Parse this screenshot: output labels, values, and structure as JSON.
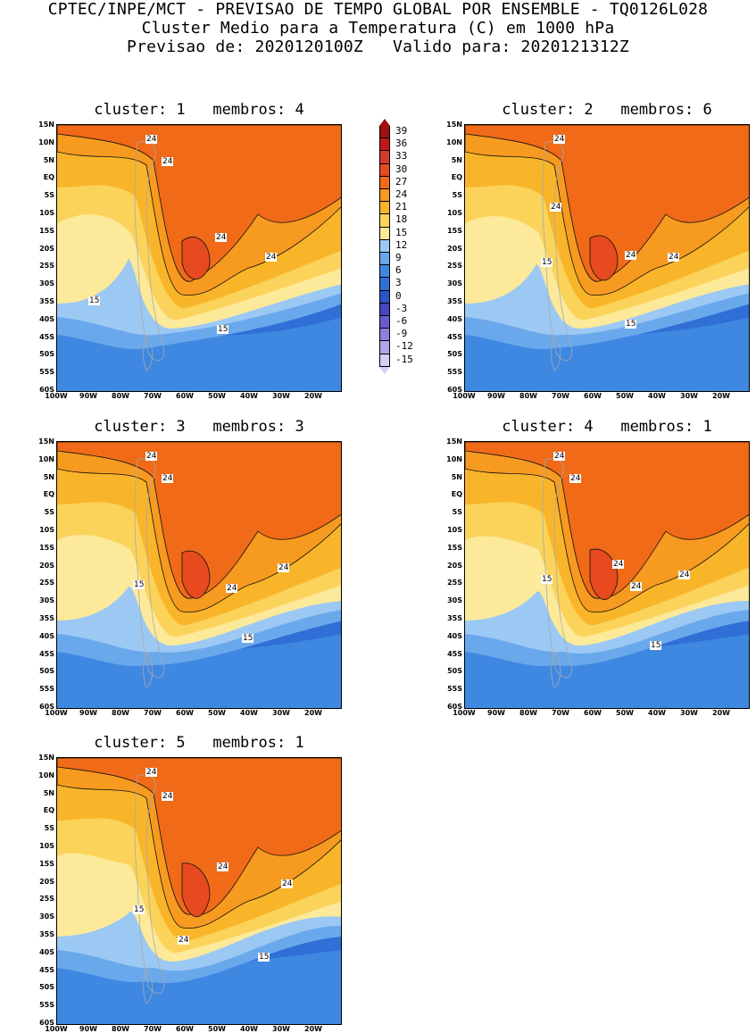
{
  "header": {
    "line1": "CPTEC/INPE/MCT - PREVISAO DE TEMPO GLOBAL POR ENSEMBLE - TQ0126L028",
    "line2": "Cluster Medio para a Temperatura (C) em 1000 hPa",
    "line3": "Previsao de: 2020120100Z   Valido para: 2020121312Z"
  },
  "lat_ticks": [
    "15N",
    "10N",
    "5N",
    "EQ",
    "5S",
    "10S",
    "15S",
    "20S",
    "25S",
    "30S",
    "35S",
    "40S",
    "45S",
    "50S",
    "55S",
    "60S"
  ],
  "lon_ticks": [
    "100W",
    "90W",
    "80W",
    "70W",
    "60W",
    "50W",
    "40W",
    "30W",
    "20W"
  ],
  "panels": [
    {
      "title": "cluster: 1   membros: 4",
      "labels": [
        "24",
        "24",
        "24",
        "24",
        "15",
        "15"
      ]
    },
    {
      "title": "cluster: 2   membros: 6",
      "labels": [
        "24",
        "24",
        "24",
        "24",
        "15",
        "15"
      ]
    },
    {
      "title": "cluster: 3   membros: 3",
      "labels": [
        "24",
        "24",
        "24",
        "24",
        "15",
        "15"
      ]
    },
    {
      "title": "cluster: 4   membros: 1",
      "labels": [
        "24",
        "24",
        "24",
        "24",
        "24",
        "15",
        "15"
      ]
    },
    {
      "title": "cluster: 5   membros: 1",
      "labels": [
        "24",
        "24",
        "24",
        "24",
        "24",
        "15",
        "15"
      ]
    }
  ],
  "colorbar": {
    "levels": [
      "39",
      "36",
      "33",
      "30",
      "27",
      "24",
      "21",
      "18",
      "15",
      "12",
      "9",
      "6",
      "3",
      "0",
      "-3",
      "-6",
      "-9",
      "-12",
      "-15"
    ],
    "colors": [
      "#a01010",
      "#c01818",
      "#d63a2a",
      "#e64a1e",
      "#f06a18",
      "#f79a20",
      "#f9b52a",
      "#fbd35a",
      "#fce99a",
      "#9cc8f4",
      "#6aa8ec",
      "#3f88e2",
      "#2f6fd6",
      "#2b55c8",
      "#4646c0",
      "#6a5ad0",
      "#8e7ede",
      "#b2a4ea",
      "#d6cef4"
    ]
  }
}
